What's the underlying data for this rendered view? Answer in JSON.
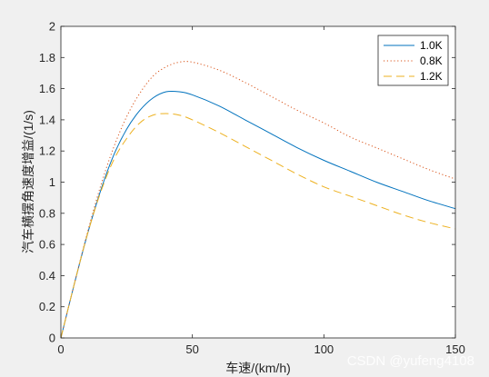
{
  "chart_data": {
    "type": "line",
    "xlabel": "车速/(km/h)",
    "ylabel": "汽车横摆角速度增益/(1/s)",
    "xlim": [
      0,
      150
    ],
    "ylim": [
      0,
      2
    ],
    "xticks": [
      "0",
      "50",
      "100",
      "150"
    ],
    "yticks": [
      "0",
      "0.2",
      "0.4",
      "0.6",
      "0.8",
      "1",
      "1.2",
      "1.4",
      "1.6",
      "1.8",
      "2"
    ],
    "legend": "top-right",
    "grid": false,
    "series": [
      {
        "name": "1.0K",
        "color": "#0072BD",
        "dash": "solid",
        "x": [
          0,
          5,
          10,
          15,
          20,
          25,
          30,
          35,
          40,
          45,
          50,
          60,
          70,
          80,
          90,
          100,
          110,
          120,
          130,
          140,
          150
        ],
        "y": [
          0,
          0.34,
          0.66,
          0.94,
          1.17,
          1.34,
          1.46,
          1.54,
          1.58,
          1.58,
          1.56,
          1.49,
          1.4,
          1.31,
          1.22,
          1.14,
          1.07,
          1.0,
          0.94,
          0.88,
          0.83
        ]
      },
      {
        "name": "0.8K",
        "color": "#D95319",
        "dash": "dotted",
        "x": [
          0,
          5,
          10,
          15,
          20,
          25,
          30,
          35,
          40,
          45,
          50,
          60,
          70,
          80,
          90,
          100,
          110,
          120,
          130,
          140,
          150
        ],
        "y": [
          0,
          0.34,
          0.67,
          0.97,
          1.22,
          1.42,
          1.57,
          1.68,
          1.74,
          1.77,
          1.77,
          1.72,
          1.64,
          1.55,
          1.46,
          1.38,
          1.29,
          1.22,
          1.15,
          1.08,
          1.02
        ]
      },
      {
        "name": "1.2K",
        "color": "#EDB120",
        "dash": "dashed",
        "x": [
          0,
          5,
          10,
          15,
          20,
          25,
          30,
          35,
          40,
          45,
          50,
          60,
          70,
          80,
          90,
          100,
          110,
          120,
          130,
          140,
          150
        ],
        "y": [
          0,
          0.34,
          0.66,
          0.93,
          1.14,
          1.28,
          1.38,
          1.43,
          1.44,
          1.43,
          1.4,
          1.32,
          1.23,
          1.14,
          1.05,
          0.97,
          0.91,
          0.85,
          0.79,
          0.74,
          0.7
        ]
      }
    ]
  },
  "watermark": "CSDN @yufeng4108"
}
